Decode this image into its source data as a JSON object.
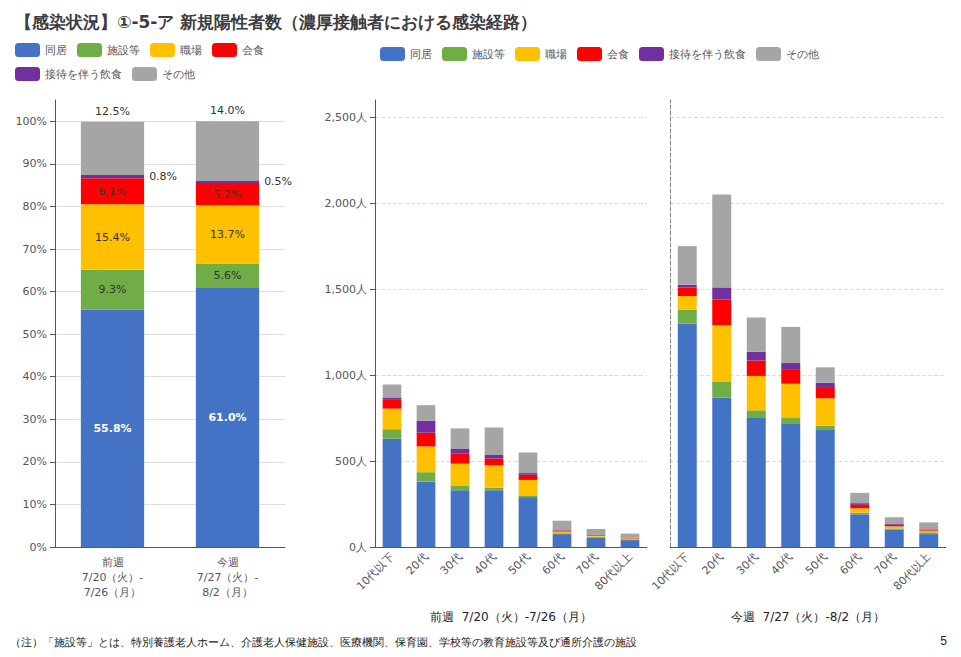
{
  "title": "【感染状況】①-5-ア 新規陽性者数（濃厚接触者における感染経路）",
  "annotations": [
    "（注）「施設等」とは、特別養護老人ホーム、介護老人保健施設、医療機関、保育園、学校等の教育施設等及び通所介護の施設",
    "5"
  ],
  "chart_data": [
    {
      "type": "bar",
      "stacked": true,
      "grid": true,
      "legend": "top",
      "data_labels": true,
      "categories": [
        "前週",
        "今週"
      ],
      "annotations": [
        "7/20（火）-\n7/26（月）",
        "7/27（火）-\n8/2（月）"
      ],
      "ylim": [
        0,
        105
      ],
      "yticks": [
        {
          "value": 0,
          "label": "0%"
        },
        {
          "value": 10,
          "label": "10%"
        },
        {
          "value": 20,
          "label": "20%"
        },
        {
          "value": 30,
          "label": "30%"
        },
        {
          "value": 40,
          "label": "40%"
        },
        {
          "value": 50,
          "label": "50%"
        },
        {
          "value": 60,
          "label": "60%"
        },
        {
          "value": 70,
          "label": "70%"
        },
        {
          "value": 80,
          "label": "80%"
        },
        {
          "value": 90,
          "label": "90%"
        },
        {
          "value": 100,
          "label": "100%"
        }
      ],
      "series": [
        {
          "name": "同居",
          "color": "#4472c4",
          "values": [
            55.8,
            61.0
          ],
          "value_labels": [
            "55.8%",
            "61.0%"
          ]
        },
        {
          "name": "施設等",
          "color": "#70ad47",
          "values": [
            9.3,
            5.6
          ],
          "value_labels": [
            "9.3%",
            "5.6%"
          ]
        },
        {
          "name": "職場",
          "color": "#ffc000",
          "values": [
            15.4,
            13.7
          ],
          "value_labels": [
            "15.4%",
            "13.7%"
          ]
        },
        {
          "name": "会食",
          "color": "#ff0000",
          "values": [
            6.1,
            5.2
          ],
          "value_labels": [
            "6.1%",
            "5.2%"
          ]
        },
        {
          "name": "接待を伴う飲食",
          "color": "#7030a0",
          "values": [
            0.8,
            0.5
          ],
          "value_labels": [
            "0.8%",
            "0.5%"
          ]
        },
        {
          "name": "その他",
          "color": "#a5a5a5",
          "values": [
            12.5,
            14.0
          ],
          "value_labels": [
            "12.5%",
            "14.0%"
          ]
        }
      ]
    },
    {
      "type": "bar",
      "stacked": true,
      "grid": true,
      "legend": "top",
      "xlabel": "前週  7/20（火）-7/26（月）",
      "categories": [
        "10代以下",
        "20代",
        "30代",
        "40代",
        "50代",
        "60代",
        "70代",
        "80代以上"
      ],
      "ylim": [
        0,
        2600
      ],
      "yticks": [
        {
          "value": 0,
          "label": "0人"
        },
        {
          "value": 500,
          "label": "500人"
        },
        {
          "value": 1000,
          "label": "1,000人"
        },
        {
          "value": 1500,
          "label": "1,500人"
        },
        {
          "value": 2000,
          "label": "2,000人"
        },
        {
          "value": 2500,
          "label": "2,500人"
        }
      ],
      "series": [
        {
          "name": "同居",
          "color": "#4472c4",
          "values": [
            630,
            380,
            330,
            330,
            290,
            75,
            55,
            40
          ]
        },
        {
          "name": "施設等",
          "color": "#70ad47",
          "values": [
            55,
            55,
            25,
            15,
            10,
            5,
            5,
            5
          ]
        },
        {
          "name": "職場",
          "color": "#ffc000",
          "values": [
            120,
            150,
            130,
            130,
            90,
            10,
            5,
            5
          ]
        },
        {
          "name": "会食",
          "color": "#ff0000",
          "values": [
            55,
            80,
            60,
            40,
            30,
            5,
            3,
            2
          ]
        },
        {
          "name": "接待を伴う飲食",
          "color": "#7030a0",
          "values": [
            10,
            70,
            25,
            20,
            10,
            3,
            2,
            1
          ]
        },
        {
          "name": "その他",
          "color": "#a5a5a5",
          "values": [
            75,
            90,
            120,
            160,
            120,
            55,
            35,
            25
          ]
        }
      ]
    },
    {
      "type": "bar",
      "stacked": true,
      "grid": true,
      "tick_labels": "x",
      "xlabel": "今週  7/27（火）-8/2（月）",
      "categories": [
        "10代以下",
        "20代",
        "30代",
        "40代",
        "50代",
        "60代",
        "70代",
        "80代以上"
      ],
      "ylim": [
        0,
        2600
      ],
      "yticks": [
        {
          "value": 0,
          "label": "0人"
        },
        {
          "value": 500,
          "label": "500人"
        },
        {
          "value": 1000,
          "label": "1,000人"
        },
        {
          "value": 1500,
          "label": "1,500人"
        },
        {
          "value": 2000,
          "label": "2,000人"
        },
        {
          "value": 2500,
          "label": "2,500人"
        }
      ],
      "series": [
        {
          "name": "同居",
          "color": "#4472c4",
          "values": [
            1300,
            870,
            750,
            720,
            680,
            190,
            100,
            75
          ]
        },
        {
          "name": "施設等",
          "color": "#70ad47",
          "values": [
            80,
            90,
            45,
            30,
            25,
            10,
            8,
            10
          ]
        },
        {
          "name": "職場",
          "color": "#ffc000",
          "values": [
            80,
            330,
            200,
            200,
            160,
            25,
            12,
            10
          ]
        },
        {
          "name": "会食",
          "color": "#ff0000",
          "values": [
            50,
            150,
            90,
            80,
            60,
            20,
            8,
            5
          ]
        },
        {
          "name": "接待を伴う飲食",
          "color": "#7030a0",
          "values": [
            15,
            70,
            50,
            40,
            30,
            10,
            5,
            3
          ]
        },
        {
          "name": "その他",
          "color": "#a5a5a5",
          "values": [
            225,
            540,
            200,
            210,
            90,
            60,
            40,
            40
          ]
        }
      ]
    }
  ]
}
